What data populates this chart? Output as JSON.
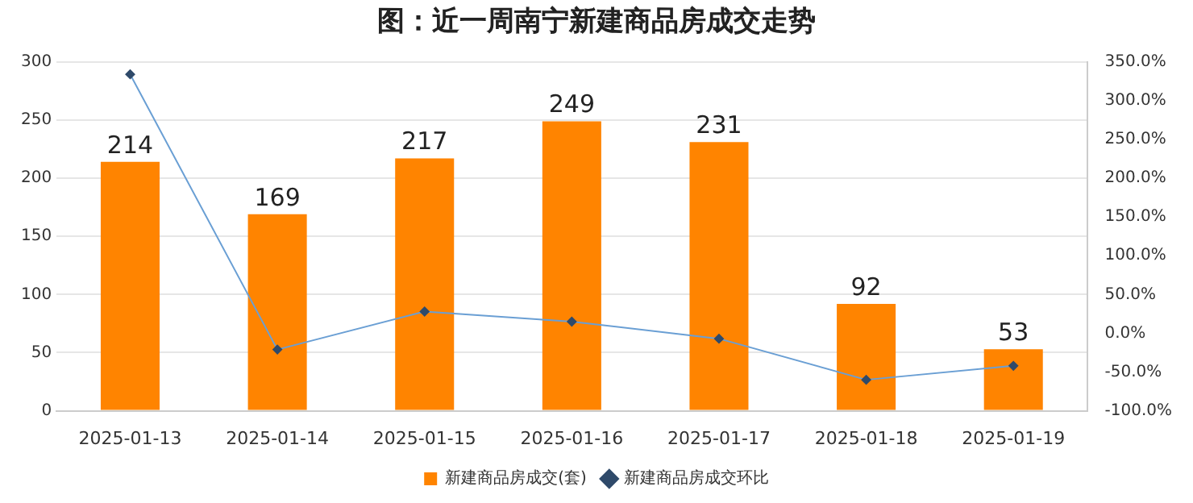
{
  "chart_data": {
    "type": "bar",
    "title": "图：近一周南宁新建商品房成交走势",
    "categories": [
      "2025-01-13",
      "2025-01-14",
      "2025-01-15",
      "2025-01-16",
      "2025-01-17",
      "2025-01-18",
      "2025-01-19"
    ],
    "series": [
      {
        "name": "新建商品房成交(套)",
        "color": "#ff8400",
        "values": [
          214,
          169,
          217,
          249,
          231,
          92,
          53
        ],
        "value_labels": [
          "214",
          "169",
          "217",
          "249",
          "231",
          "92",
          "53"
        ]
      },
      {
        "name": "新建商品房成交环比",
        "type": "line",
        "axis": "y2",
        "color": "#6a9fd4",
        "marker": "diamond",
        "values": [
          334,
          -21,
          28,
          15,
          -7,
          -60,
          -42
        ]
      }
    ],
    "ylim": [
      0,
      300
    ],
    "yticks": [
      0,
      50,
      100,
      150,
      200,
      250,
      300
    ],
    "y2lim": [
      -100,
      350
    ],
    "y2ticks": [
      {
        "value": -100,
        "label": "-100.0%"
      },
      {
        "value": -50,
        "label": "-50.0%"
      },
      {
        "value": 0,
        "label": "0.0%"
      },
      {
        "value": 50,
        "label": "50.0%"
      },
      {
        "value": 100,
        "label": "100.0%"
      },
      {
        "value": 150,
        "label": "150.0%"
      },
      {
        "value": 200,
        "label": "200.0%"
      },
      {
        "value": 250,
        "label": "250.0%"
      },
      {
        "value": 300,
        "label": "300.0%"
      },
      {
        "value": 350,
        "label": "350.0%"
      }
    ],
    "grid": "y",
    "legend": "bottom"
  }
}
